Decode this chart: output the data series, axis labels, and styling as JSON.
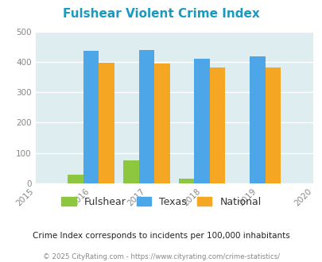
{
  "title": "Fulshear Violent Crime Index",
  "title_color": "#1a9ac0",
  "years": [
    2015,
    2016,
    2017,
    2018,
    2019,
    2020
  ],
  "bar_years": [
    2016,
    2017,
    2018,
    2019
  ],
  "fulshear": [
    28,
    75,
    15,
    0
  ],
  "texas": [
    435,
    438,
    411,
    417
  ],
  "national": [
    398,
    394,
    382,
    382
  ],
  "fulshear_color": "#8dc63f",
  "texas_color": "#4da6e8",
  "national_color": "#f5a623",
  "ylim": [
    0,
    500
  ],
  "yticks": [
    0,
    100,
    200,
    300,
    400,
    500
  ],
  "plot_bg": "#deeef0",
  "grid_color": "#ffffff",
  "note": "Crime Index corresponds to incidents per 100,000 inhabitants",
  "footer": "© 2025 CityRating.com - https://www.cityrating.com/crime-statistics/",
  "note_color": "#222222",
  "footer_color": "#888888",
  "legend_label_color": "#333333",
  "bar_width": 0.28
}
